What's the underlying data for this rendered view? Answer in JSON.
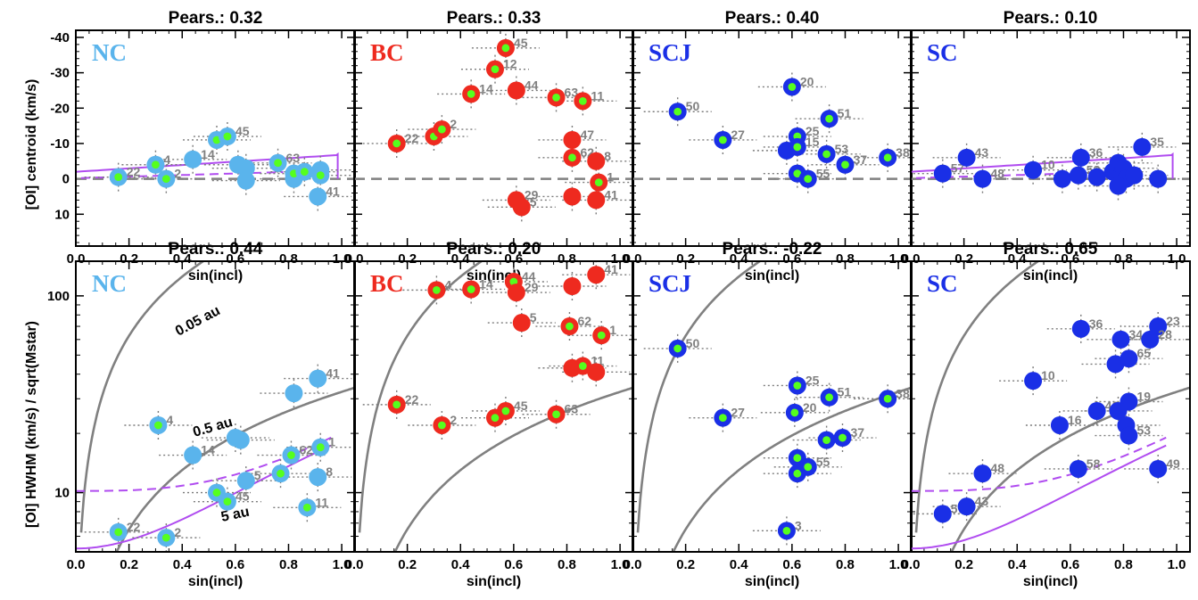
{
  "colors": {
    "NC": "#5ab4ec",
    "BC": "#ee2a1f",
    "SCJ": "#1a2fe6",
    "SC": "#1a2fe6",
    "lime": "#55ff1e",
    "gray": "#808080",
    "purple": "#b04cf0"
  },
  "xlabel": "sin(incl)",
  "ylabel_top": "[OI] centroid (km/s)",
  "ylabel_bottom": "[OI] HWHM (km/s) / sqrt(Mstar)",
  "annotations": {
    "a1": "0.05 au",
    "a2": "0.5 au",
    "a3": "5 au"
  },
  "chart_data": [
    {
      "type": "scatter",
      "group": "NC",
      "row": "top",
      "title": "Pears.: 0.32",
      "xlabel": "sin(incl)",
      "ylabel": "[OI] centroid (km/s)",
      "xlim": [
        0,
        1.05
      ],
      "ylim": [
        19,
        -42
      ],
      "points": [
        {
          "x": 0.16,
          "y": -0.5,
          "lbl": "22",
          "c": 1
        },
        {
          "x": 0.3,
          "y": -4,
          "lbl": "4",
          "c": 1
        },
        {
          "x": 0.34,
          "y": 0,
          "lbl": "2",
          "c": 1
        },
        {
          "x": 0.44,
          "y": -5.5,
          "lbl": "14",
          "c": 0
        },
        {
          "x": 0.53,
          "y": -11,
          "lbl": "",
          "c": 1
        },
        {
          "x": 0.57,
          "y": -12,
          "lbl": "45",
          "c": 1
        },
        {
          "x": 0.61,
          "y": -4,
          "lbl": "",
          "c": 0
        },
        {
          "x": 0.64,
          "y": -3,
          "lbl": "",
          "c": 0
        },
        {
          "x": 0.64,
          "y": 0.5,
          "lbl": "",
          "c": 0
        },
        {
          "x": 0.76,
          "y": -4.5,
          "lbl": "63",
          "c": 1
        },
        {
          "x": 0.82,
          "y": 0,
          "lbl": "",
          "c": 0
        },
        {
          "x": 0.82,
          "y": -1.5,
          "lbl": "",
          "c": 1
        },
        {
          "x": 0.86,
          "y": -2,
          "lbl": "",
          "c": 1
        },
        {
          "x": 0.92,
          "y": -2.5,
          "lbl": "",
          "c": 0
        },
        {
          "x": 0.92,
          "y": -1,
          "lbl": "",
          "c": 1
        },
        {
          "x": 0.91,
          "y": 5,
          "lbl": "41",
          "c": 0
        }
      ]
    },
    {
      "type": "scatter",
      "group": "BC",
      "row": "top",
      "title": "Pears.: 0.33",
      "xlabel": "sin(incl)",
      "ylabel": "",
      "xlim": [
        0,
        1.05
      ],
      "ylim": [
        19,
        -42
      ],
      "points": [
        {
          "x": 0.16,
          "y": -10,
          "lbl": "22",
          "c": 1
        },
        {
          "x": 0.3,
          "y": -12,
          "lbl": "4",
          "c": 1
        },
        {
          "x": 0.33,
          "y": -14,
          "lbl": "2",
          "c": 1
        },
        {
          "x": 0.44,
          "y": -24,
          "lbl": "14",
          "c": 1
        },
        {
          "x": 0.53,
          "y": -31,
          "lbl": "12",
          "c": 1
        },
        {
          "x": 0.57,
          "y": -37,
          "lbl": "45",
          "c": 1
        },
        {
          "x": 0.61,
          "y": -25,
          "lbl": "44",
          "c": 0
        },
        {
          "x": 0.76,
          "y": -23,
          "lbl": "63",
          "c": 1
        },
        {
          "x": 0.86,
          "y": -22,
          "lbl": "11",
          "c": 1
        },
        {
          "x": 0.82,
          "y": -11,
          "lbl": "47",
          "c": 0
        },
        {
          "x": 0.82,
          "y": -6,
          "lbl": "62",
          "c": 1
        },
        {
          "x": 0.91,
          "y": -5,
          "lbl": "8",
          "c": 0
        },
        {
          "x": 0.92,
          "y": 1,
          "lbl": "1",
          "c": 1
        },
        {
          "x": 0.61,
          "y": 6,
          "lbl": "29",
          "c": 0
        },
        {
          "x": 0.63,
          "y": 8,
          "lbl": "5",
          "c": 0
        },
        {
          "x": 0.82,
          "y": 5,
          "lbl": "",
          "c": 0
        },
        {
          "x": 0.91,
          "y": 6,
          "lbl": "41",
          "c": 0
        }
      ]
    },
    {
      "type": "scatter",
      "group": "SCJ",
      "row": "top",
      "title": "Pears.: 0.40",
      "xlabel": "sin(incl)",
      "ylabel": "",
      "xlim": [
        0,
        1.05
      ],
      "ylim": [
        19,
        -42
      ],
      "points": [
        {
          "x": 0.17,
          "y": -19,
          "lbl": "50",
          "c": 1
        },
        {
          "x": 0.34,
          "y": -11,
          "lbl": "27",
          "c": 1
        },
        {
          "x": 0.6,
          "y": -26,
          "lbl": "20",
          "c": 1
        },
        {
          "x": 0.74,
          "y": -17,
          "lbl": "51",
          "c": 1
        },
        {
          "x": 0.62,
          "y": -12,
          "lbl": "25",
          "c": 1
        },
        {
          "x": 0.58,
          "y": -8,
          "lbl": "",
          "c": 0
        },
        {
          "x": 0.62,
          "y": -9,
          "lbl": "15",
          "c": 1
        },
        {
          "x": 0.73,
          "y": -7,
          "lbl": "53",
          "c": 1
        },
        {
          "x": 0.8,
          "y": -4,
          "lbl": "37",
          "c": 1
        },
        {
          "x": 0.96,
          "y": -6,
          "lbl": "38",
          "c": 1
        },
        {
          "x": 0.62,
          "y": -1.5,
          "lbl": "",
          "c": 1
        },
        {
          "x": 0.66,
          "y": 0,
          "lbl": "55",
          "c": 1
        }
      ]
    },
    {
      "type": "scatter",
      "group": "SC",
      "row": "top",
      "title": "Pears.: 0.10",
      "xlabel": "sin(incl)",
      "ylabel": "",
      "xlim": [
        0,
        1.05
      ],
      "ylim": [
        19,
        -42
      ],
      "points": [
        {
          "x": 0.12,
          "y": -1.5,
          "lbl": "57",
          "c": 0
        },
        {
          "x": 0.21,
          "y": -6,
          "lbl": "43",
          "c": 0
        },
        {
          "x": 0.27,
          "y": 0,
          "lbl": "48",
          "c": 0
        },
        {
          "x": 0.46,
          "y": -2.5,
          "lbl": "10",
          "c": 0
        },
        {
          "x": 0.57,
          "y": 0,
          "lbl": "",
          "c": 0
        },
        {
          "x": 0.63,
          "y": -1,
          "lbl": "58",
          "c": 0
        },
        {
          "x": 0.64,
          "y": -6,
          "lbl": "36",
          "c": 0
        },
        {
          "x": 0.7,
          "y": -0.5,
          "lbl": "",
          "c": 0
        },
        {
          "x": 0.76,
          "y": -2,
          "lbl": "",
          "c": 0
        },
        {
          "x": 0.78,
          "y": -4.5,
          "lbl": "",
          "c": 0
        },
        {
          "x": 0.8,
          "y": -3,
          "lbl": "",
          "c": 0
        },
        {
          "x": 0.81,
          "y": 0,
          "lbl": "",
          "c": 0
        },
        {
          "x": 0.78,
          "y": 2,
          "lbl": "",
          "c": 0
        },
        {
          "x": 0.84,
          "y": -1,
          "lbl": "",
          "c": 0
        },
        {
          "x": 0.87,
          "y": -9,
          "lbl": "35",
          "c": 0
        },
        {
          "x": 0.93,
          "y": 0,
          "lbl": "",
          "c": 0
        }
      ]
    },
    {
      "type": "scatter",
      "group": "NC",
      "row": "bottom",
      "title": "Pears.: 0.44",
      "xlabel": "sin(incl)",
      "ylabel": "[OI] HWHM (km/s) / sqrt(Mstar)",
      "xlim": [
        0,
        1.05
      ],
      "ylim": [
        5,
        150
      ],
      "yscale": "log",
      "points": [
        {
          "x": 0.16,
          "y": 6.3,
          "lbl": "22",
          "c": 1
        },
        {
          "x": 0.34,
          "y": 5.9,
          "lbl": "2",
          "c": 1
        },
        {
          "x": 0.31,
          "y": 22,
          "lbl": "4",
          "c": 1
        },
        {
          "x": 0.44,
          "y": 15.5,
          "lbl": "14",
          "c": 0
        },
        {
          "x": 0.53,
          "y": 10,
          "lbl": "",
          "c": 1
        },
        {
          "x": 0.57,
          "y": 9,
          "lbl": "45",
          "c": 1
        },
        {
          "x": 0.6,
          "y": 19,
          "lbl": "",
          "c": 0
        },
        {
          "x": 0.62,
          "y": 18.5,
          "lbl": "",
          "c": 0
        },
        {
          "x": 0.64,
          "y": 11.5,
          "lbl": "5",
          "c": 0
        },
        {
          "x": 0.77,
          "y": 12.5,
          "lbl": "",
          "c": 1
        },
        {
          "x": 0.81,
          "y": 15.5,
          "lbl": "62",
          "c": 1
        },
        {
          "x": 0.82,
          "y": 32,
          "lbl": "",
          "c": 0
        },
        {
          "x": 0.91,
          "y": 38,
          "lbl": "41",
          "c": 0
        },
        {
          "x": 0.92,
          "y": 17,
          "lbl": "1",
          "c": 1
        },
        {
          "x": 0.91,
          "y": 12,
          "lbl": "8",
          "c": 0
        },
        {
          "x": 0.87,
          "y": 8.4,
          "lbl": "11",
          "c": 1
        }
      ]
    },
    {
      "type": "scatter",
      "group": "BC",
      "row": "bottom",
      "title": "Pears.: 0.20",
      "xlabel": "sin(incl)",
      "ylabel": "",
      "xlim": [
        0,
        1.05
      ],
      "ylim": [
        5,
        150
      ],
      "yscale": "log",
      "points": [
        {
          "x": 0.16,
          "y": 28,
          "lbl": "22",
          "c": 1
        },
        {
          "x": 0.31,
          "y": 107,
          "lbl": "4",
          "c": 1
        },
        {
          "x": 0.44,
          "y": 108,
          "lbl": "14",
          "c": 1
        },
        {
          "x": 0.33,
          "y": 22,
          "lbl": "2",
          "c": 1
        },
        {
          "x": 0.53,
          "y": 24,
          "lbl": "",
          "c": 1
        },
        {
          "x": 0.57,
          "y": 26,
          "lbl": "45",
          "c": 1
        },
        {
          "x": 0.6,
          "y": 118,
          "lbl": "44",
          "c": 1
        },
        {
          "x": 0.61,
          "y": 104,
          "lbl": "29",
          "c": 0
        },
        {
          "x": 0.63,
          "y": 73,
          "lbl": "5",
          "c": 0
        },
        {
          "x": 0.76,
          "y": 25,
          "lbl": "63",
          "c": 1
        },
        {
          "x": 0.82,
          "y": 112,
          "lbl": "",
          "c": 0
        },
        {
          "x": 0.81,
          "y": 70,
          "lbl": "62",
          "c": 1
        },
        {
          "x": 0.82,
          "y": 43,
          "lbl": "",
          "c": 0
        },
        {
          "x": 0.86,
          "y": 44,
          "lbl": "11",
          "c": 1
        },
        {
          "x": 0.91,
          "y": 128,
          "lbl": "41",
          "c": 0
        },
        {
          "x": 0.91,
          "y": 41,
          "lbl": "",
          "c": 0
        },
        {
          "x": 0.93,
          "y": 63,
          "lbl": "1",
          "c": 1
        }
      ]
    },
    {
      "type": "scatter",
      "group": "SCJ",
      "row": "bottom",
      "title": "Pears.: -0.22",
      "xlabel": "sin(incl)",
      "ylabel": "",
      "xlim": [
        0,
        1.05
      ],
      "ylim": [
        5,
        150
      ],
      "yscale": "log",
      "points": [
        {
          "x": 0.17,
          "y": 54,
          "lbl": "50",
          "c": 1
        },
        {
          "x": 0.34,
          "y": 24,
          "lbl": "27",
          "c": 1
        },
        {
          "x": 0.62,
          "y": 35,
          "lbl": "25",
          "c": 1
        },
        {
          "x": 0.61,
          "y": 25.5,
          "lbl": "20",
          "c": 1
        },
        {
          "x": 0.74,
          "y": 30.5,
          "lbl": "51",
          "c": 1
        },
        {
          "x": 0.96,
          "y": 30,
          "lbl": "38",
          "c": 1
        },
        {
          "x": 0.73,
          "y": 18.5,
          "lbl": "",
          "c": 1
        },
        {
          "x": 0.79,
          "y": 19,
          "lbl": "37",
          "c": 1
        },
        {
          "x": 0.62,
          "y": 15,
          "lbl": "",
          "c": 1
        },
        {
          "x": 0.62,
          "y": 12.5,
          "lbl": "",
          "c": 1
        },
        {
          "x": 0.66,
          "y": 13.5,
          "lbl": "55",
          "c": 1
        },
        {
          "x": 0.58,
          "y": 6.4,
          "lbl": "3",
          "c": 1
        }
      ]
    },
    {
      "type": "scatter",
      "group": "SC",
      "row": "bottom",
      "title": "Pears.: 0.65",
      "xlabel": "sin(incl)",
      "ylabel": "",
      "xlim": [
        0,
        1.05
      ],
      "ylim": [
        5,
        150
      ],
      "yscale": "log",
      "points": [
        {
          "x": 0.12,
          "y": 7.8,
          "lbl": "57",
          "c": 0
        },
        {
          "x": 0.21,
          "y": 8.5,
          "lbl": "43",
          "c": 0
        },
        {
          "x": 0.27,
          "y": 12.5,
          "lbl": "48",
          "c": 0
        },
        {
          "x": 0.46,
          "y": 37,
          "lbl": "10",
          "c": 0
        },
        {
          "x": 0.56,
          "y": 22,
          "lbl": "16",
          "c": 0
        },
        {
          "x": 0.63,
          "y": 13.2,
          "lbl": "58",
          "c": 0
        },
        {
          "x": 0.64,
          "y": 68,
          "lbl": "36",
          "c": 0
        },
        {
          "x": 0.7,
          "y": 26,
          "lbl": "46",
          "c": 0
        },
        {
          "x": 0.77,
          "y": 45,
          "lbl": "61",
          "c": 0
        },
        {
          "x": 0.79,
          "y": 60,
          "lbl": "34",
          "c": 0
        },
        {
          "x": 0.82,
          "y": 48,
          "lbl": "65",
          "c": 0
        },
        {
          "x": 0.82,
          "y": 29,
          "lbl": "19",
          "c": 0
        },
        {
          "x": 0.78,
          "y": 26,
          "lbl": "",
          "c": 0
        },
        {
          "x": 0.81,
          "y": 22,
          "lbl": "",
          "c": 0
        },
        {
          "x": 0.82,
          "y": 19.5,
          "lbl": "53",
          "c": 0
        },
        {
          "x": 0.93,
          "y": 70,
          "lbl": "23",
          "c": 0
        },
        {
          "x": 0.9,
          "y": 60,
          "lbl": "28",
          "c": 0
        },
        {
          "x": 0.93,
          "y": 13.2,
          "lbl": "49",
          "c": 0
        }
      ]
    }
  ]
}
